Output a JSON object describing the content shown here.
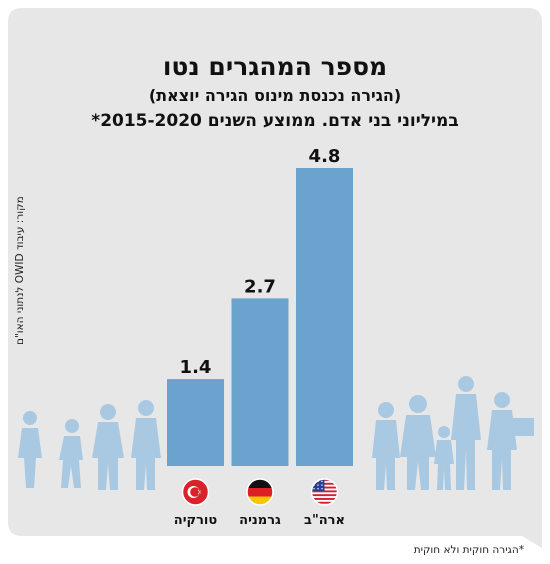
{
  "title": "מספר המהגרים נטו",
  "subtitle": "(הגירה נכנסת מינוס הגירה יוצאת)",
  "subtitle2": "במיליוני בני אדם. ממוצע השנים 2015-2020*",
  "source": "מקור: עיבוד OWID לנתוני האו\"ם",
  "footnote": "*הגירה חוקית ולא חוקית",
  "colors": {
    "background": "#e7e7e8",
    "bar": "#6aa3cd",
    "silhouette": "#a9c9e3"
  },
  "chart_data": {
    "type": "bar",
    "title": "מספר המהגרים נטו",
    "categories": [
      "טורקיה",
      "גרמניה",
      "ארה\"ב"
    ],
    "values": [
      1.4,
      2.7,
      4.8
    ],
    "value_labels": [
      "1.4",
      "2.7",
      "4.8"
    ],
    "flags": [
      "turkey-flag-icon",
      "germany-flag-icon",
      "usa-flag-icon"
    ],
    "ylim": [
      0,
      4.8
    ],
    "grid": false,
    "legend": "none"
  }
}
